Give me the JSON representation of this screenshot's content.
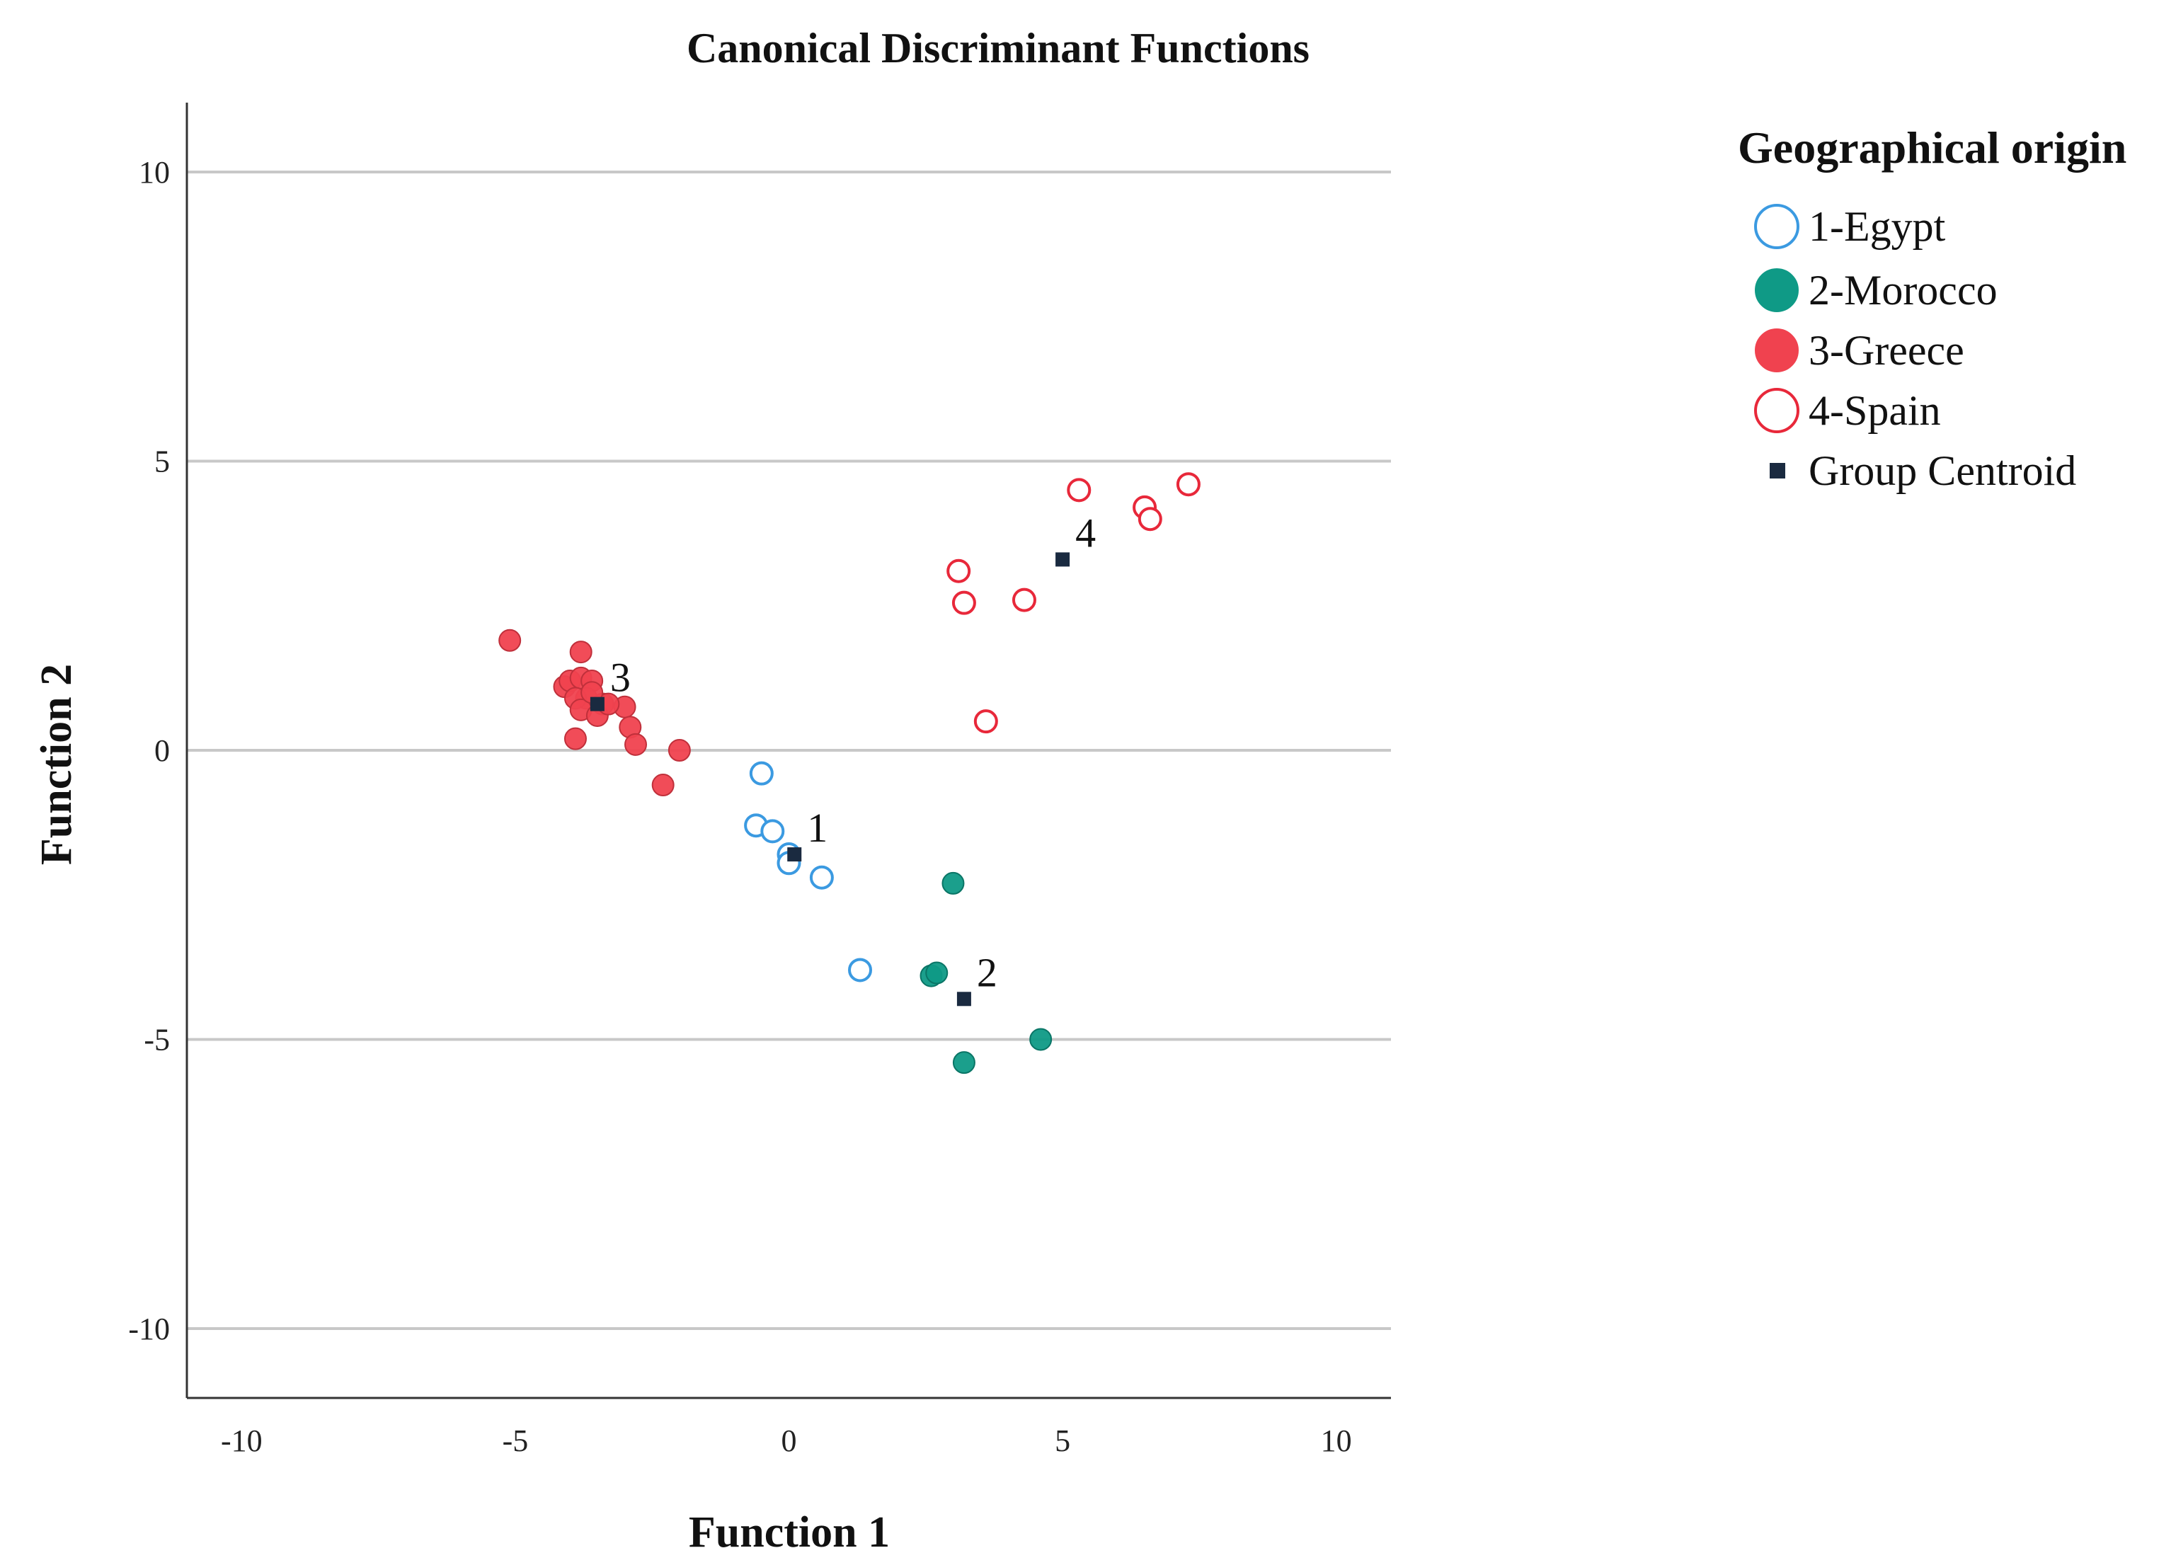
{
  "chart_data": {
    "type": "scatter",
    "title": "Canonical Discriminant Functions",
    "xlabel": "Function 1",
    "ylabel": "Function 2",
    "xlim": [
      -11,
      11
    ],
    "ylim": [
      -11.2,
      11.2
    ],
    "xticks": [
      -10,
      -5,
      0,
      5,
      10
    ],
    "yticks": [
      10,
      5,
      0,
      -5,
      -10
    ],
    "grid": "horizontal",
    "legend": {
      "title": "Geographical origin",
      "position": "top-right",
      "items": [
        {
          "label": "1-Egypt",
          "marker": "open-circle",
          "color": "#3b9ae1"
        },
        {
          "label": "2-Morocco",
          "marker": "filled-circle",
          "color": "#0f9a86"
        },
        {
          "label": "3-Greece",
          "marker": "filled-circle",
          "color": "#f0424f"
        },
        {
          "label": "4-Spain",
          "marker": "open-circle",
          "color": "#e8283a"
        },
        {
          "label": "Group Centroid",
          "marker": "square",
          "color": "#1a2a40"
        }
      ]
    },
    "series": [
      {
        "name": "1-Egypt",
        "x": [
          -0.5,
          -0.6,
          -0.3,
          0.0,
          0.0,
          0.6,
          1.3
        ],
        "y": [
          -0.4,
          -1.3,
          -1.4,
          -1.8,
          -1.95,
          -2.2,
          -3.8
        ]
      },
      {
        "name": "2-Morocco",
        "x": [
          3.0,
          2.6,
          2.7,
          3.2,
          4.6
        ],
        "y": [
          -2.3,
          -3.9,
          -3.85,
          -5.4,
          -5.0
        ]
      },
      {
        "name": "3-Greece",
        "x": [
          -5.1,
          -3.8,
          -4.1,
          -4.0,
          -3.8,
          -3.6,
          -3.7,
          -3.9,
          -3.8,
          -3.4,
          -3.5,
          -3.0,
          -2.9,
          -3.3,
          -2.8,
          -3.9,
          -2.0,
          -2.3,
          -3.6
        ],
        "y": [
          1.9,
          1.7,
          1.1,
          1.2,
          1.25,
          1.2,
          0.9,
          0.9,
          0.7,
          0.8,
          0.6,
          0.75,
          0.4,
          0.8,
          0.1,
          0.2,
          0.0,
          -0.6,
          1.0
        ]
      },
      {
        "name": "4-Spain",
        "x": [
          5.3,
          6.5,
          6.6,
          7.3,
          3.1,
          3.2,
          4.3,
          3.6
        ],
        "y": [
          4.5,
          4.2,
          4.0,
          4.6,
          3.1,
          2.55,
          2.6,
          0.5
        ]
      }
    ],
    "centroids": [
      {
        "label": "1",
        "x": 0.1,
        "y": -1.8
      },
      {
        "label": "2",
        "x": 3.2,
        "y": -4.3
      },
      {
        "label": "3",
        "x": -3.5,
        "y": 0.8
      },
      {
        "label": "4",
        "x": 5.0,
        "y": 3.3
      }
    ]
  }
}
